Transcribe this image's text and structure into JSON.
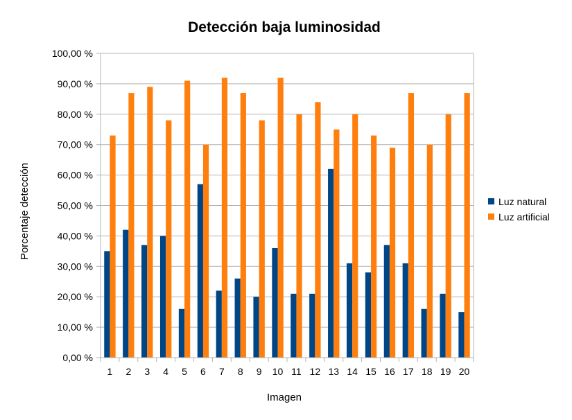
{
  "chart_data": {
    "type": "bar",
    "title": "Detección baja luminosidad",
    "xlabel": "Imagen",
    "ylabel": "Porcentaje detección",
    "categories": [
      "1",
      "2",
      "3",
      "4",
      "5",
      "6",
      "7",
      "8",
      "9",
      "10",
      "11",
      "12",
      "13",
      "14",
      "15",
      "16",
      "17",
      "18",
      "19",
      "20"
    ],
    "y_ticks": [
      "0,00 %",
      "10,00 %",
      "20,00 %",
      "30,00 %",
      "40,00 %",
      "50,00 %",
      "60,00 %",
      "70,00 %",
      "80,00 %",
      "90,00 %",
      "100,00 %"
    ],
    "ylim": [
      0,
      100
    ],
    "grid": true,
    "legend_position": "right",
    "series": [
      {
        "name": "Luz natural",
        "color": "#004586",
        "values": [
          35,
          42,
          37,
          40,
          16,
          57,
          22,
          26,
          20,
          36,
          21,
          21,
          62,
          31,
          28,
          37,
          31,
          16,
          21,
          15
        ]
      },
      {
        "name": "Luz artificial",
        "color": "#ff7f0e",
        "values": [
          73,
          87,
          89,
          78,
          91,
          70,
          92,
          87,
          78,
          92,
          80,
          84,
          75,
          80,
          73,
          69,
          87,
          70,
          80,
          87
        ]
      }
    ]
  }
}
